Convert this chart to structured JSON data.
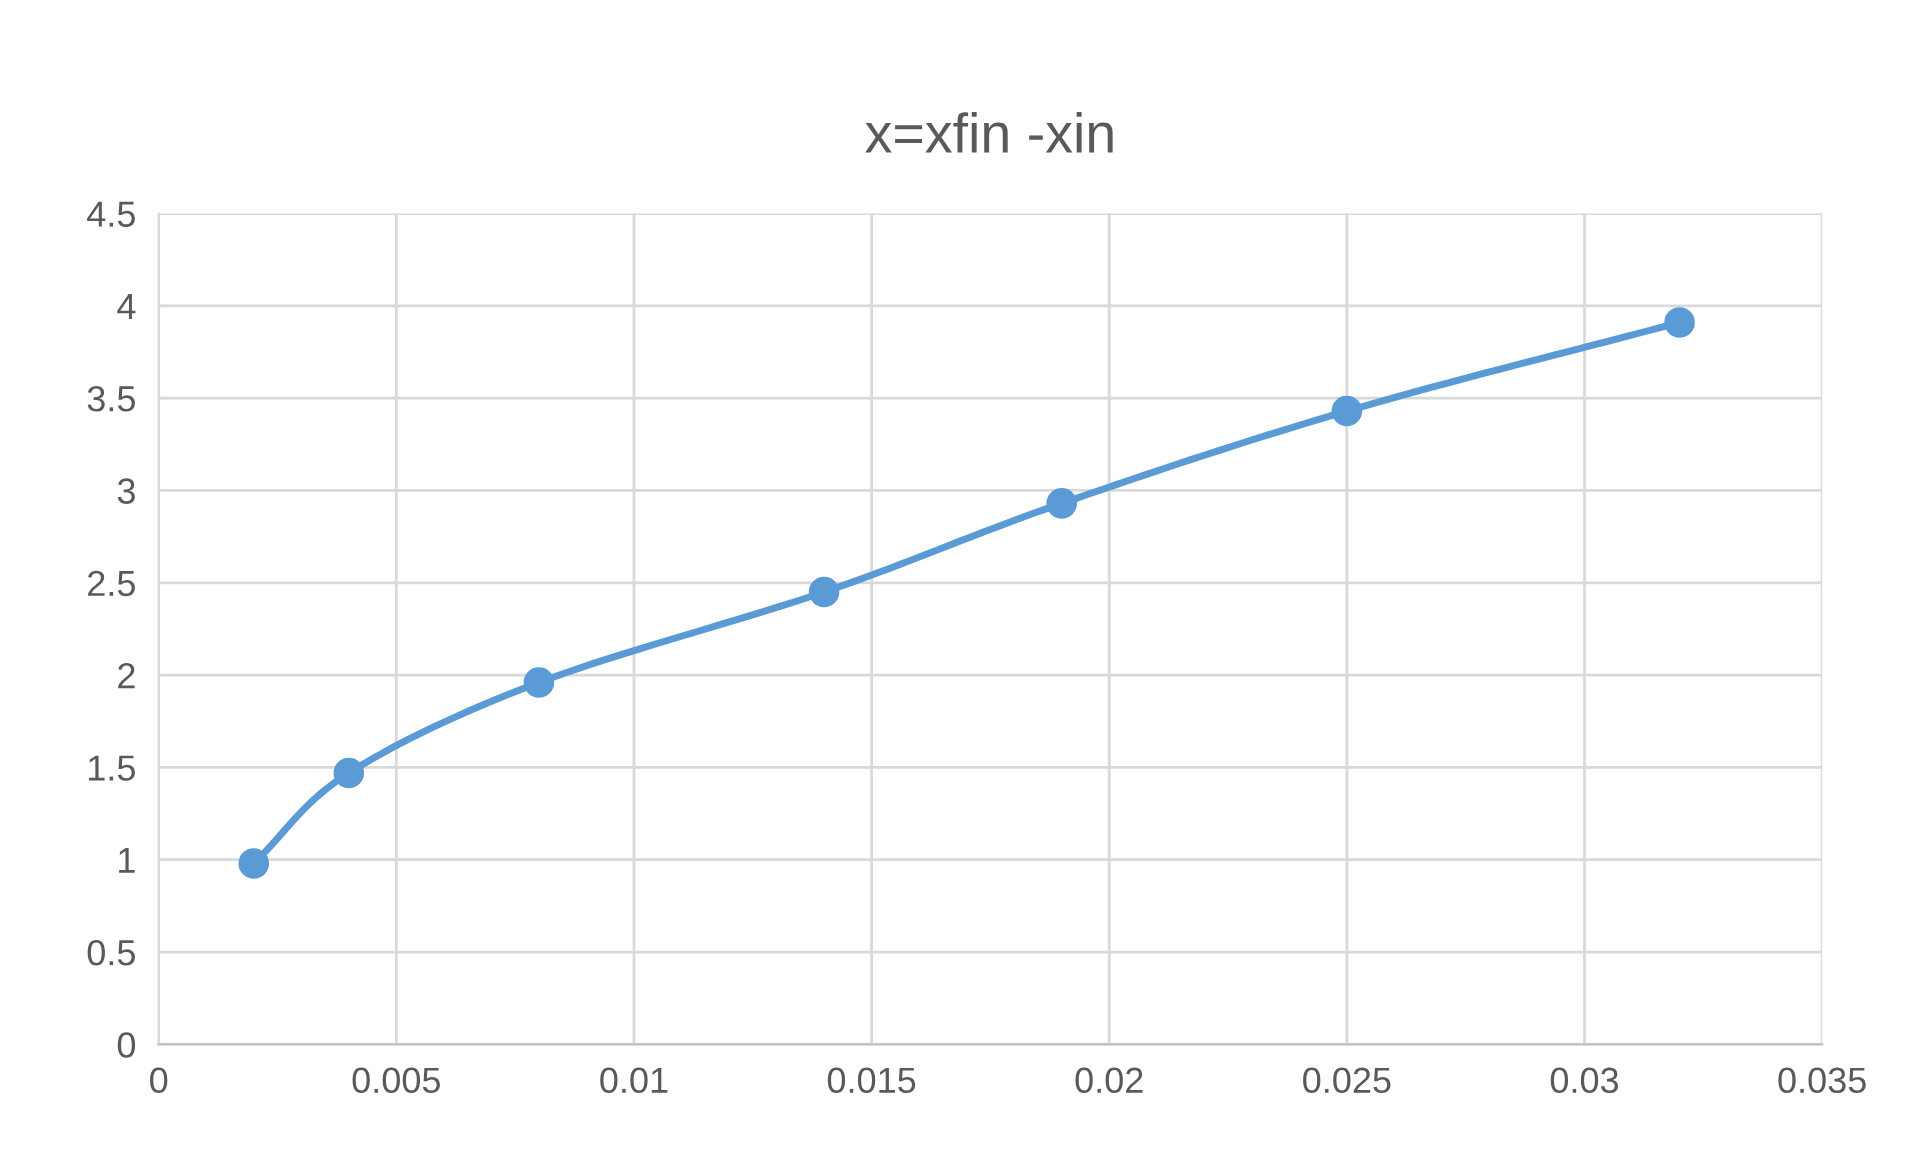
{
  "chart_data": {
    "type": "line",
    "title": "x=xfin -xin",
    "x": [
      0.002,
      0.004,
      0.008,
      0.014,
      0.019,
      0.025,
      0.032
    ],
    "series": [
      {
        "color": "#5b9bd5",
        "values": [
          0.98,
          1.47,
          1.96,
          2.45,
          2.93,
          3.43,
          3.91
        ]
      }
    ],
    "xlim": [
      0,
      0.035
    ],
    "xticks": [
      0,
      0.005,
      0.01,
      0.015,
      0.02,
      0.025,
      0.03,
      0.035
    ],
    "ylim": [
      0,
      4.5
    ],
    "yticks": [
      0,
      0.5,
      1,
      1.5,
      2,
      2.5,
      3,
      3.5,
      4,
      4.5
    ],
    "grid": true,
    "marker": "circle",
    "line_style": "solid"
  }
}
